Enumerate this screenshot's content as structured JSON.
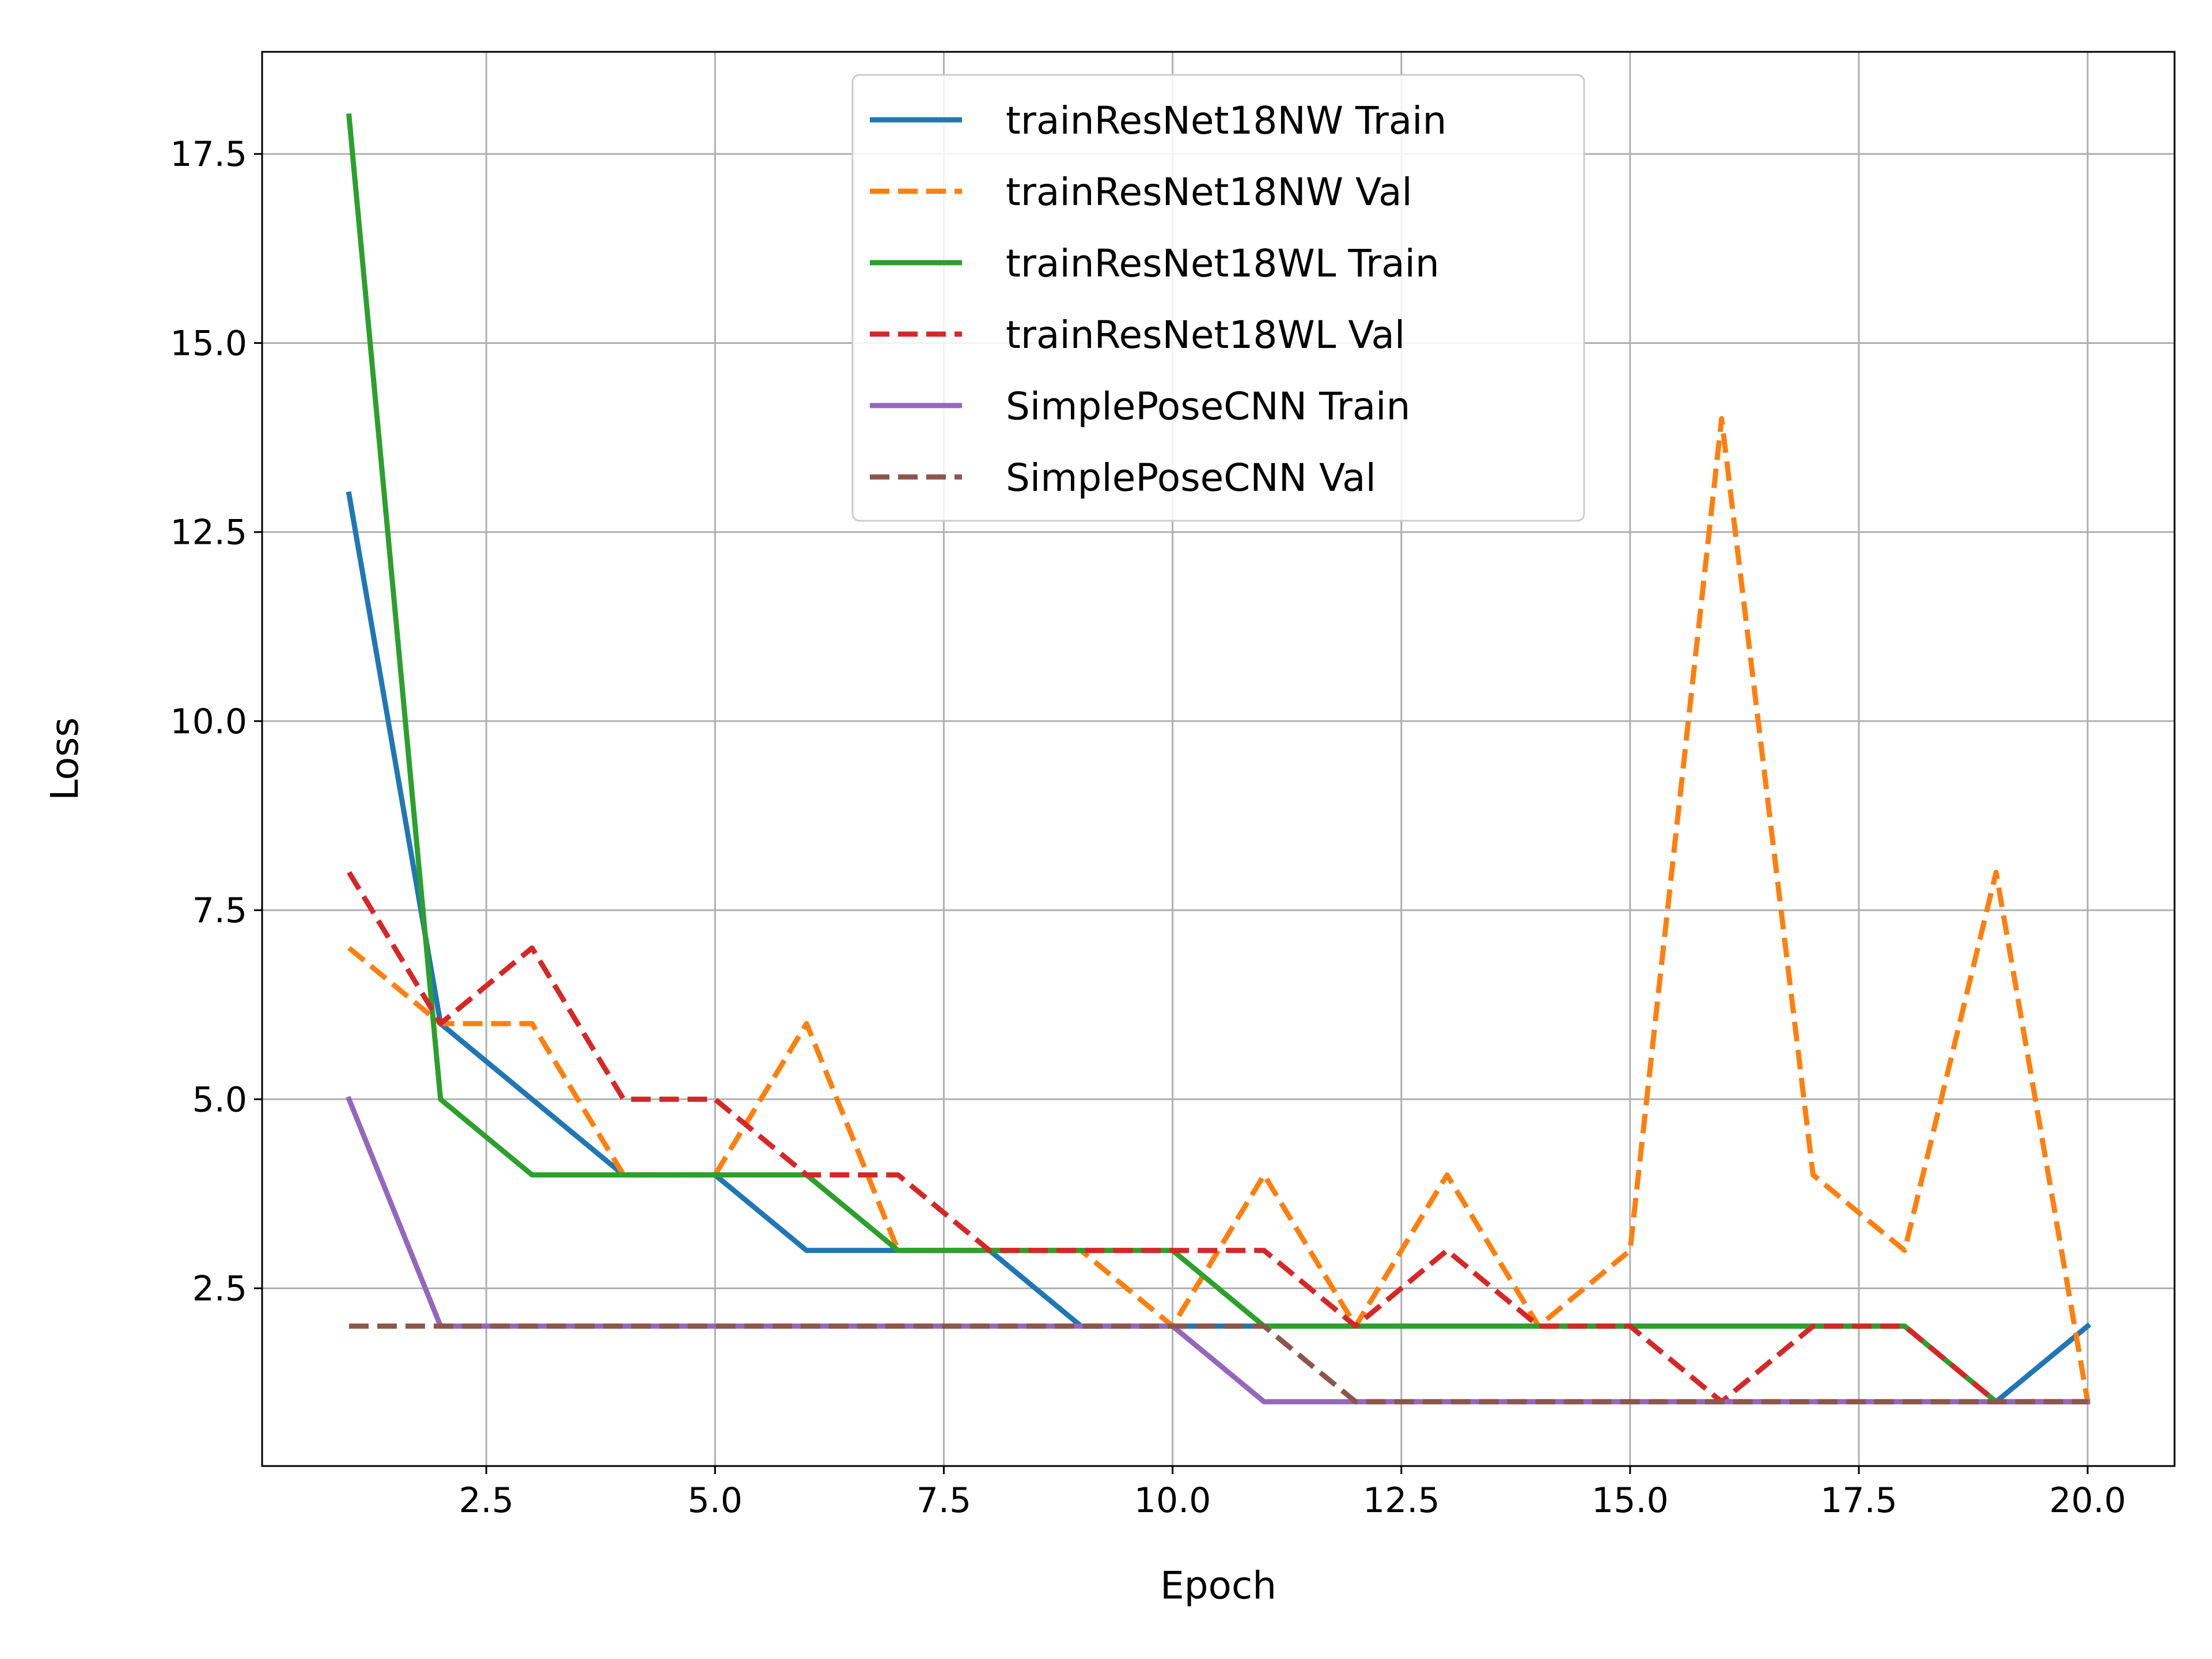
{
  "chart_data": {
    "type": "line",
    "title": "",
    "xlabel": "Epoch",
    "ylabel": "Loss",
    "xlim": [
      0.05,
      20.95
    ],
    "ylim": [
      0.15,
      18.85
    ],
    "xticks": [
      2.5,
      5.0,
      7.5,
      10.0,
      12.5,
      15.0,
      17.5,
      20.0
    ],
    "xtick_labels": [
      "2.5",
      "5.0",
      "7.5",
      "10.0",
      "12.5",
      "15.0",
      "17.5",
      "20.0"
    ],
    "yticks": [
      2.5,
      5.0,
      7.5,
      10.0,
      12.5,
      15.0,
      17.5
    ],
    "ytick_labels": [
      "2.5",
      "5.0",
      "7.5",
      "10.0",
      "12.5",
      "15.0",
      "17.5"
    ],
    "grid": true,
    "legend_position": "top-center",
    "x": [
      1,
      2,
      3,
      4,
      5,
      6,
      7,
      8,
      9,
      10,
      11,
      12,
      13,
      14,
      15,
      16,
      17,
      18,
      19,
      20
    ],
    "series": [
      {
        "name": "trainResNet18NW Train",
        "color": "#1f77b4",
        "dash": "solid",
        "values": [
          13,
          6,
          5,
          4,
          4,
          3,
          3,
          3,
          2,
          2,
          2,
          2,
          2,
          2,
          2,
          2,
          2,
          2,
          1,
          2
        ]
      },
      {
        "name": "trainResNet18NW Val",
        "color": "#ff7f0e",
        "dash": "dashed",
        "values": [
          7,
          6,
          6,
          4,
          4,
          6,
          3,
          3,
          3,
          2,
          4,
          2,
          4,
          2,
          3,
          14,
          4,
          3,
          8,
          1
        ]
      },
      {
        "name": "trainResNet18WL Train",
        "color": "#2ca02c",
        "dash": "solid",
        "values": [
          18,
          5,
          4,
          4,
          4,
          4,
          3,
          3,
          3,
          3,
          2,
          2,
          2,
          2,
          2,
          2,
          2,
          2,
          1,
          1
        ]
      },
      {
        "name": "trainResNet18WL Val",
        "color": "#d62728",
        "dash": "dashed",
        "values": [
          8,
          6,
          7,
          5,
          5,
          4,
          4,
          3,
          3,
          3,
          3,
          2,
          3,
          2,
          2,
          1,
          2,
          2,
          1,
          1
        ]
      },
      {
        "name": "SimplePoseCNN Train",
        "color": "#9467bd",
        "dash": "solid",
        "values": [
          5,
          2,
          2,
          2,
          2,
          2,
          2,
          2,
          2,
          2,
          1,
          1,
          1,
          1,
          1,
          1,
          1,
          1,
          1,
          1
        ]
      },
      {
        "name": "SimplePoseCNN Val",
        "color": "#8c564b",
        "dash": "dashed",
        "values": [
          2,
          2,
          2,
          2,
          2,
          2,
          2,
          2,
          2,
          2,
          2,
          1,
          1,
          1,
          1,
          1,
          1,
          1,
          1,
          1
        ]
      }
    ]
  }
}
